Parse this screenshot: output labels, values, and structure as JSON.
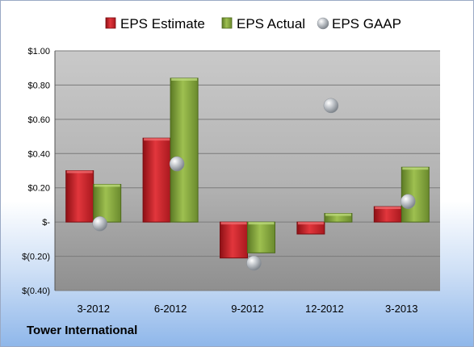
{
  "footer": {
    "company": "Tower International"
  },
  "colors": {
    "estimate": "#c8242b",
    "actual": "#7f9f3a",
    "gaap": "#a8aeb6"
  },
  "chart_data": {
    "type": "bar",
    "title": "",
    "xlabel": "",
    "ylabel": "",
    "categories": [
      "3-2012",
      "6-2012",
      "9-2012",
      "12-2012",
      "3-2013"
    ],
    "series": [
      {
        "name": "EPS Estimate",
        "type": "bar",
        "values": [
          0.3,
          0.49,
          -0.21,
          -0.07,
          0.09
        ]
      },
      {
        "name": "EPS Actual",
        "type": "bar",
        "values": [
          0.22,
          0.84,
          -0.18,
          0.05,
          0.32
        ]
      },
      {
        "name": "EPS GAAP",
        "type": "scatter",
        "values": [
          -0.01,
          0.34,
          -0.24,
          0.68,
          0.12
        ]
      }
    ],
    "ylim": [
      -0.4,
      1.0
    ],
    "yticks": [
      1.0,
      0.8,
      0.6,
      0.4,
      0.2,
      0,
      -0.2,
      -0.4
    ],
    "ytick_labels": [
      "$1.00",
      "$0.80",
      "$0.60",
      "$0.40",
      "$0.20",
      "$-",
      "$(0.20)",
      "$(0.40)"
    ],
    "legend": {
      "position": "top",
      "labels": [
        "EPS Estimate",
        "EPS Actual",
        "EPS GAAP"
      ]
    },
    "grid": true
  }
}
